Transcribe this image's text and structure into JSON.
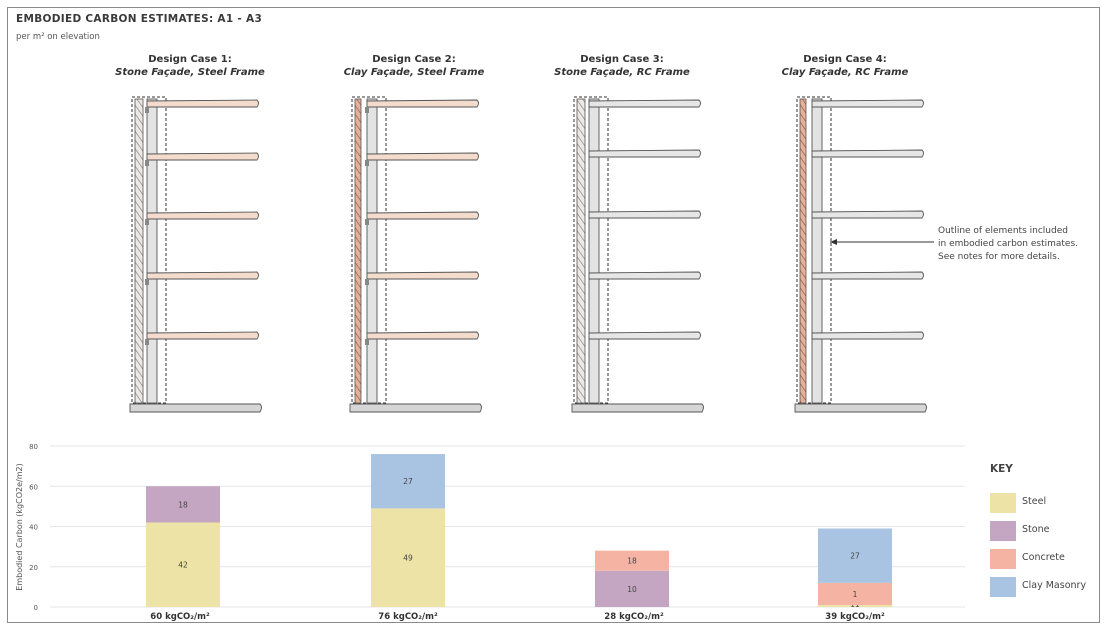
{
  "title": "EMBODIED CARBON ESTIMATES: A1 - A3",
  "subtitle": "per m² on elevation",
  "cases": [
    {
      "title": "Design Case 1:",
      "subtitle": "Stone Façade, Steel Frame",
      "total": "60 kgCO₂/m²"
    },
    {
      "title": "Design Case 2:",
      "subtitle": "Clay Façade, Steel Frame",
      "total": "76 kgCO₂/m²"
    },
    {
      "title": "Design Case 3:",
      "subtitle": "Stone Façade, RC Frame",
      "total": "28 kgCO₂/m²"
    },
    {
      "title": "Design Case 4:",
      "subtitle": "Clay Façade, RC Frame",
      "total": "39 kgCO₂/m²"
    }
  ],
  "annotation": [
    "Outline of elements included",
    "in embodied carbon estimates.",
    "See notes for more details."
  ],
  "key": {
    "title": "KEY",
    "items": [
      {
        "label": "Steel",
        "color": "#ede3a6"
      },
      {
        "label": "Stone",
        "color": "#c4a5c2"
      },
      {
        "label": "Concrete",
        "color": "#f5b3a3"
      },
      {
        "label": "Clay Masonry",
        "color": "#a9c4e2"
      }
    ]
  },
  "colors": {
    "facade_stone": "#b8b0a8",
    "facade_clay": "#c98a72",
    "floor_plate": "#f3dccb",
    "frame_grey": "#d9d9d9"
  },
  "chart_data": {
    "type": "bar",
    "stacked": true,
    "categories": [
      "Design Case 1",
      "Design Case 2",
      "Design Case 3",
      "Design Case 4"
    ],
    "series": [
      {
        "name": "Steel",
        "values": [
          42,
          49,
          0,
          1
        ]
      },
      {
        "name": "Stone",
        "values": [
          18,
          0,
          18,
          0
        ]
      },
      {
        "name": "Concrete",
        "values": [
          0,
          0,
          10,
          11
        ]
      },
      {
        "name": "Clay Masonry",
        "values": [
          0,
          27,
          0,
          27
        ]
      }
    ],
    "data_labels": [
      [
        "42",
        "18"
      ],
      [
        "49",
        "27"
      ],
      [
        "10",
        "18"
      ],
      [
        "11",
        "1",
        "27"
      ]
    ],
    "ylabel": "Embodied Carbon (kgCO2e/m2)",
    "yticks": [
      "0",
      "20",
      "40",
      "60",
      "80"
    ],
    "ylim": [
      0,
      80
    ],
    "grid": true,
    "legend": "right"
  }
}
